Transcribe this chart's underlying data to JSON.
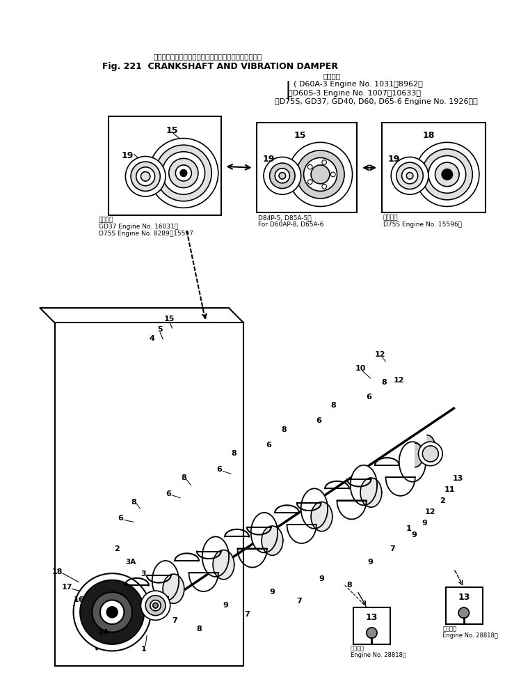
{
  "title_japanese": "クランクシャフト　および　バイブレーション　ダンパ",
  "title_english": "Fig. 221  CRANKSHAFT AND VIBRATION DAMPER",
  "engine_line1": "適用号機",
  "engine_line2": "D60A-3 Engine No. 1031～8962）",
  "engine_line3": "（D60S-3 Engine No. 1007～10633）",
  "engine_line4": "（D75S, GD37, GD40, D60, D65-6 Engine No. 1926～）",
  "box1_cap_title": "適用号機",
  "box1_cap1": "GD37 Engine No. 16031～",
  "box1_cap2": "D75S Engine No. 8289～15597",
  "box2_cap1": "D84P-5, D85A-5用",
  "box2_cap2": "For D60AP-8, D65A-6",
  "box3_cap_title": "適用号機",
  "box3_cap1": "D75S Engine No. 15596～",
  "note1_title": "適用号機",
  "note1_text": "Engine No. 28818～",
  "note2_title": "適用号機",
  "note2_text": "Engine No. 28818～",
  "bg_color": "#ffffff"
}
